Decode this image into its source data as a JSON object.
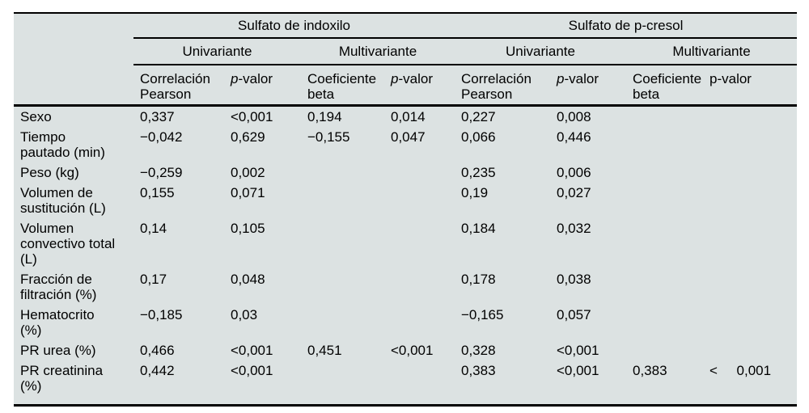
{
  "table": {
    "colors": {
      "panel_background": "#dce2e2",
      "rule": "#000000",
      "text": "#000000",
      "page_background": "#ffffff"
    },
    "group_headers": [
      "Sulfato de indoxilo",
      "Sulfato de p-cresol"
    ],
    "subgroup_headers": [
      "Univariante",
      "Multivariante",
      "Univariante",
      "Multivariante"
    ],
    "column_headers": [
      "Correlación\nPearson",
      "p-valor",
      "Coeficiente\nbeta",
      "p-valor",
      "Correlación\nPearson",
      "p-valor",
      "Coeficiente\nbeta",
      "p-valor"
    ],
    "rows": [
      {
        "label": "Sexo",
        "values": [
          "0,337",
          "<0,001",
          "0,194",
          "0,014",
          "0,227",
          "0,008",
          "",
          ""
        ]
      },
      {
        "label": "Tiempo\npautado (min)",
        "values": [
          "−0,042",
          "0,629",
          "−0,155",
          "0,047",
          "0,066",
          "0,446",
          "",
          ""
        ]
      },
      {
        "label": "Peso (kg)",
        "values": [
          "−0,259",
          "0,002",
          "",
          "",
          "0,235",
          "0,006",
          "",
          ""
        ]
      },
      {
        "label": "Volumen de\nsustitución (L)",
        "values": [
          "0,155",
          "0,071",
          "",
          "",
          "0,19",
          "0,027",
          "",
          ""
        ]
      },
      {
        "label": "Volumen\nconvectivo total\n(L)",
        "values": [
          "0,14",
          "0,105",
          "",
          "",
          "0,184",
          "0,032",
          "",
          ""
        ]
      },
      {
        "label": "Fracción de\nfiltración (%)",
        "values": [
          "0,17",
          "0,048",
          "",
          "",
          "0,178",
          "0,038",
          "",
          ""
        ]
      },
      {
        "label": "Hematocrito\n(%)",
        "values": [
          "−0,185",
          "0,03",
          "",
          "",
          "−0,165",
          "0,057",
          "",
          ""
        ]
      },
      {
        "label": "PR urea (%)",
        "values": [
          "0,466",
          "<0,001",
          "0,451",
          "<0,001",
          "0,328",
          "<0,001",
          "",
          ""
        ]
      },
      {
        "label": "PR creatinina\n(%)",
        "values": [
          "0,442",
          "<0,001",
          "",
          "",
          "0,383",
          "<0,001",
          "0,383",
          "<     0,001"
        ]
      }
    ]
  }
}
